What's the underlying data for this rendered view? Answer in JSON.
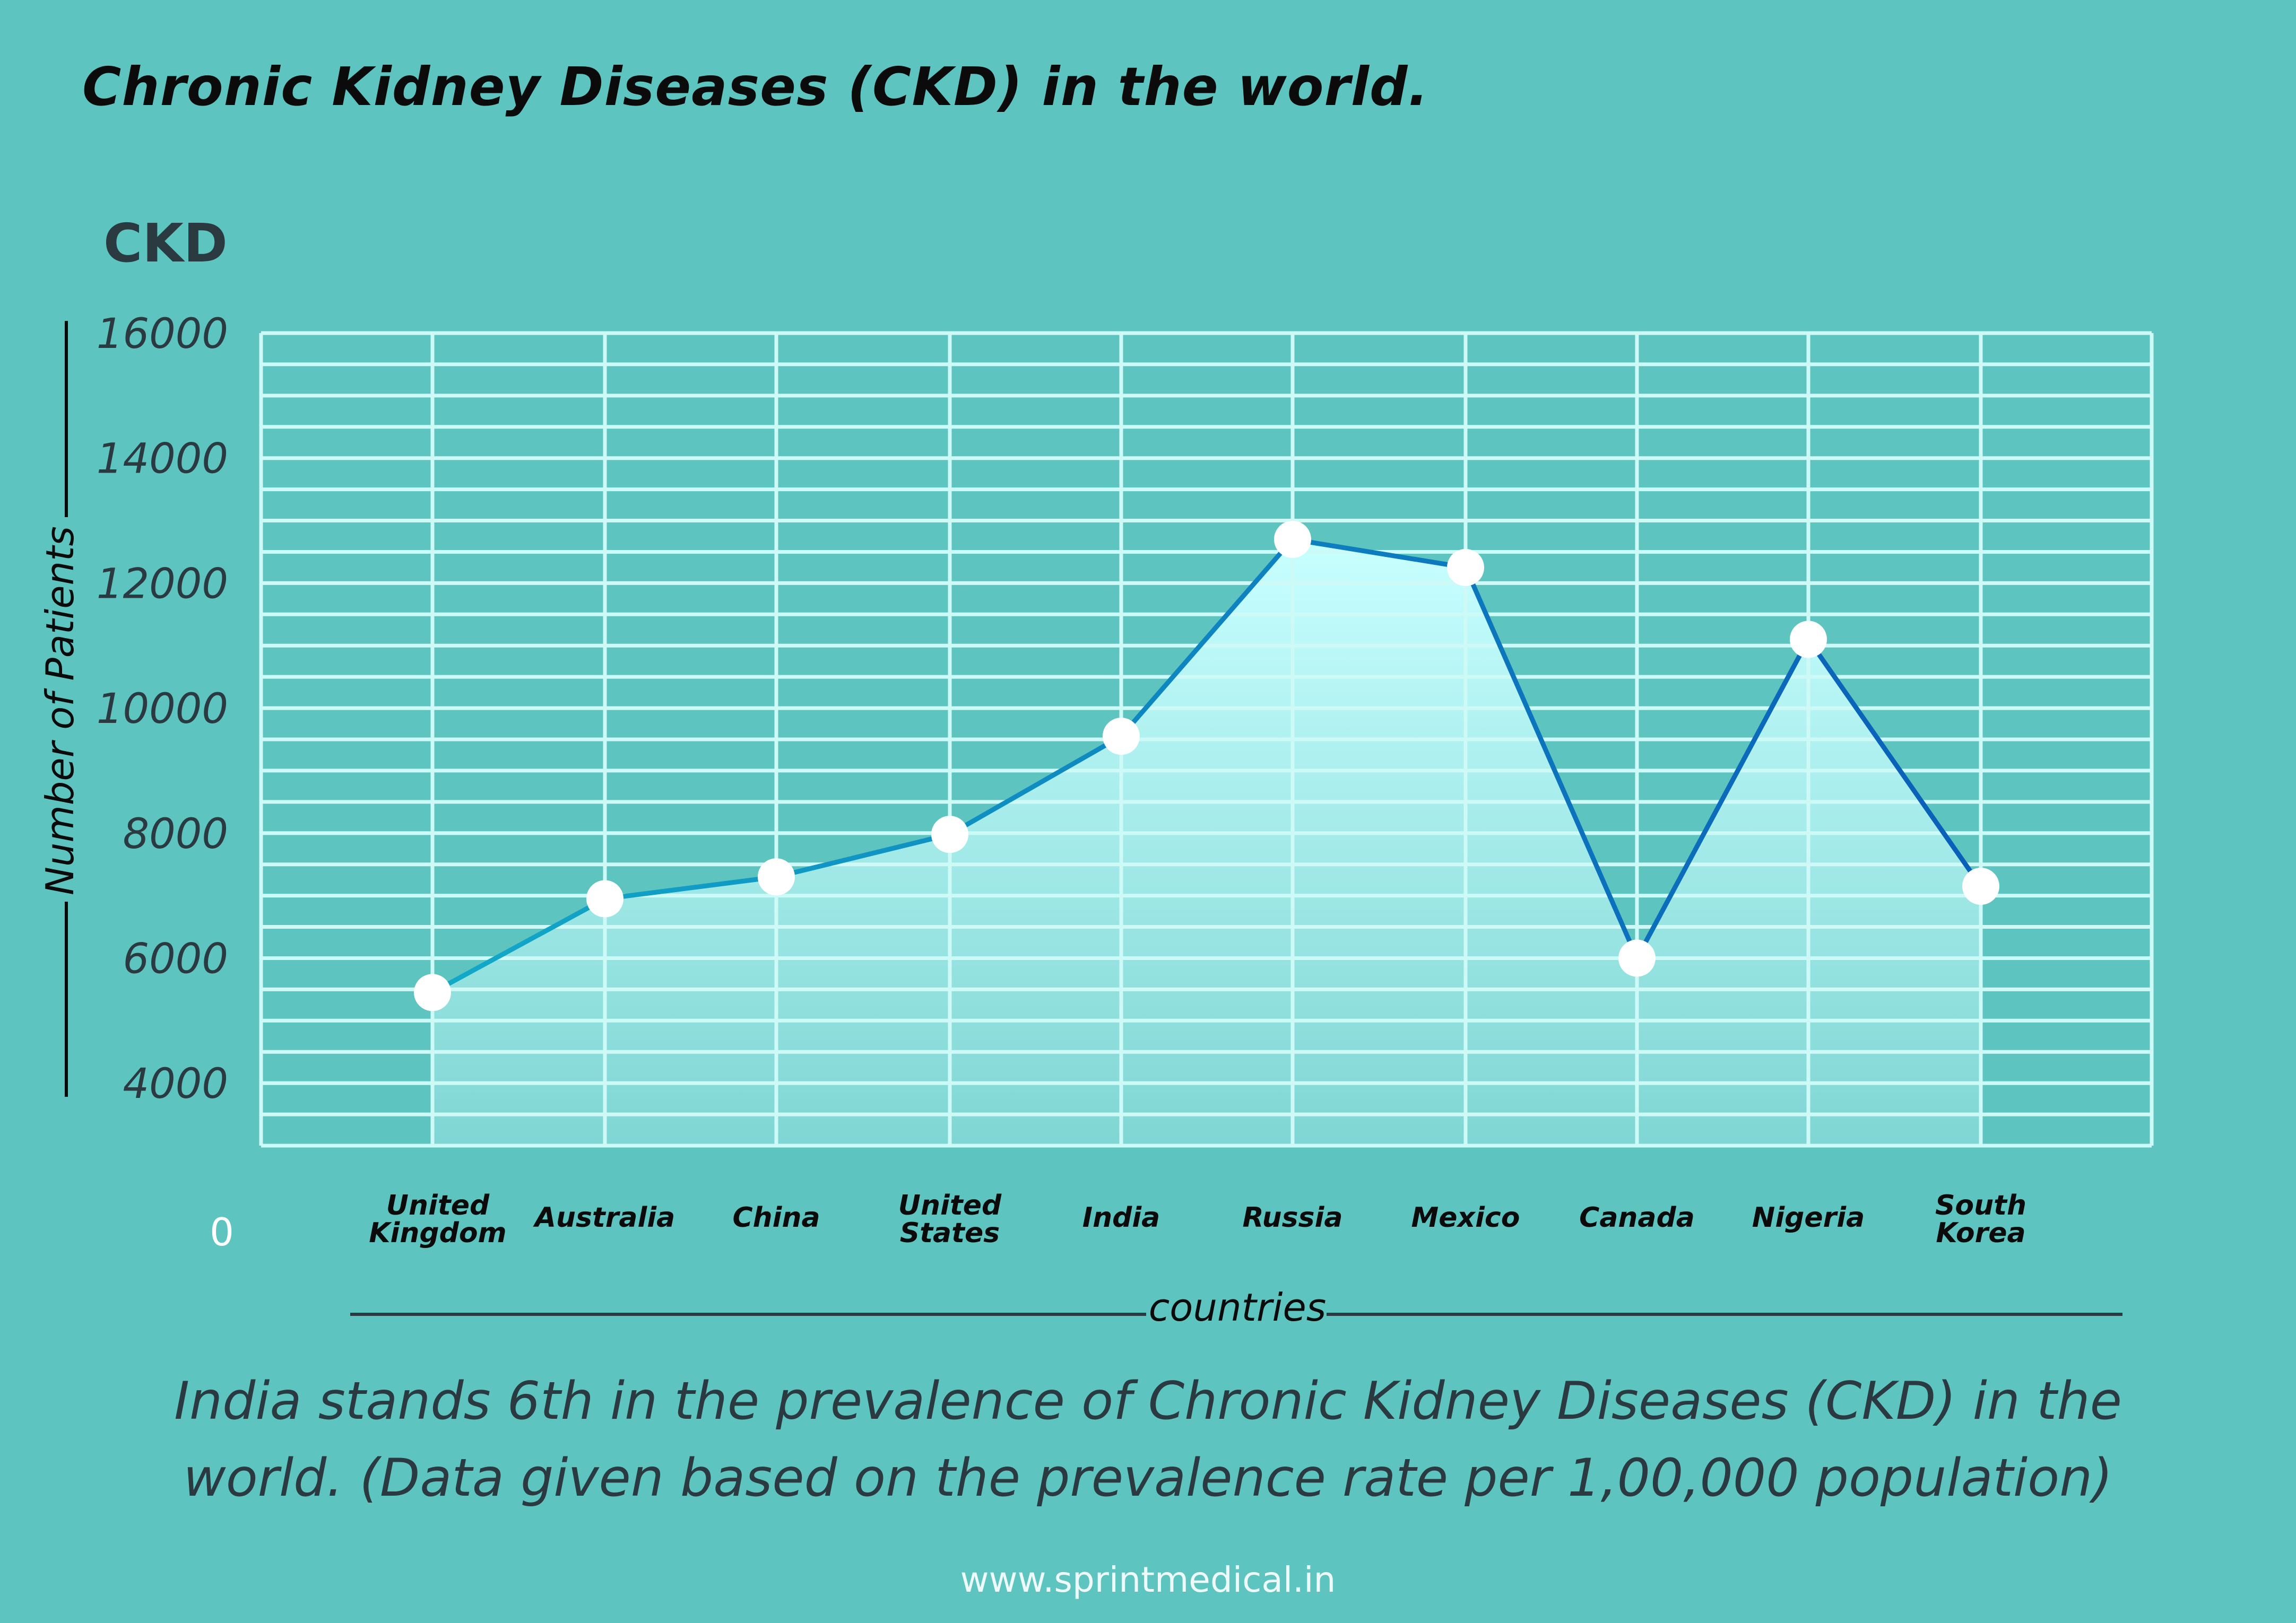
{
  "title": "Chronic Kidney Diseases (CKD) in the world.",
  "caption": {
    "line1": "India stands 6th in the prevalence of Chronic Kidney Diseases (CKD) in the",
    "line2": "world. (Data given based on the prevalence rate per 1,00,000 population)"
  },
  "website": "www.sprintmedical.in",
  "colors": {
    "background": "#5ec4c0",
    "grid": "#cdf9f6",
    "line_start": "#12a9c8",
    "line_end": "#0a5fb8",
    "marker": "#ffffff",
    "area_top": "#c8ffff",
    "area_bottom": "#7fd6d3"
  },
  "chart_data": {
    "type": "line",
    "chart_title": "CKD",
    "xlabel": "countries",
    "ylabel": "Number of  Patients",
    "origin_label": "0",
    "ylim": [
      3000,
      16000
    ],
    "yticks": [
      16000,
      14000,
      12000,
      10000,
      8000,
      6000,
      4000
    ],
    "categories": [
      [
        "United",
        "Kingdom"
      ],
      [
        "Australia"
      ],
      [
        "China"
      ],
      [
        "United",
        "States"
      ],
      [
        "India"
      ],
      [
        "Russia"
      ],
      [
        "Mexico"
      ],
      [
        "Canada"
      ],
      [
        "Nigeria"
      ],
      [
        "South",
        "Korea"
      ]
    ],
    "values": [
      5450,
      6950,
      7300,
      7980,
      9550,
      12700,
      12250,
      6000,
      11100,
      7150
    ]
  }
}
